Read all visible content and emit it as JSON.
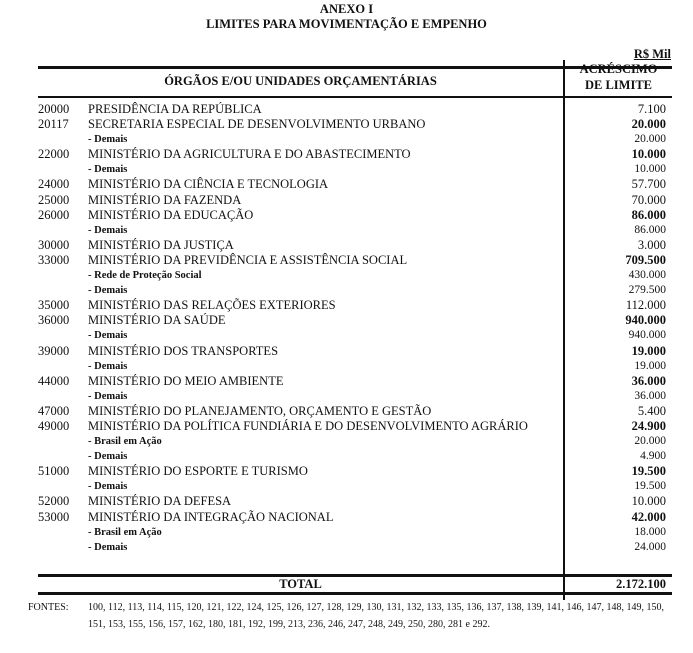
{
  "header": {
    "title": "ANEXO I",
    "subtitle": "LIMITES PARA MOVIMENTAÇÃO E EMPENHO",
    "unit": "R$ Mil"
  },
  "table": {
    "col_org": "ÓRGÃOS E/OU UNIDADES ORÇAMENTÁRIAS",
    "col_value_line1": "ACRÉSCIMO",
    "col_value_line2": "DE LIMITE",
    "rows": [
      {
        "code": "20000",
        "name": "PRESIDÊNCIA DA REPÚBLICA",
        "value": "7.100",
        "type": "plain"
      },
      {
        "code": "20117",
        "name": "SECRETARIA ESPECIAL DE DESENVOLVIMENTO URBANO",
        "value": "20.000",
        "type": "bold"
      },
      {
        "code": "",
        "name": "- Demais",
        "value": "20.000",
        "type": "sub"
      },
      {
        "code": "22000",
        "name": "MINISTÉRIO DA AGRICULTURA E DO ABASTECIMENTO",
        "value": "10.000",
        "type": "bold"
      },
      {
        "code": "",
        "name": "- Demais",
        "value": "10.000",
        "type": "sub"
      },
      {
        "code": "24000",
        "name": "MINISTÉRIO DA CIÊNCIA E  TECNOLOGIA",
        "value": "57.700",
        "type": "plain"
      },
      {
        "code": "25000",
        "name": "MINISTÉRIO DA FAZENDA",
        "value": "70.000",
        "type": "plain"
      },
      {
        "code": "26000",
        "name": "MINISTÉRIO DA EDUCAÇÃO",
        "value": "86.000",
        "type": "bold"
      },
      {
        "code": "",
        "name": "- Demais",
        "value": "86.000",
        "type": "sub"
      },
      {
        "code": "30000",
        "name": "MINISTÉRIO DA JUSTIÇA",
        "value": "3.000",
        "type": "plain"
      },
      {
        "code": "33000",
        "name": "MINISTÉRIO DA PREVIDÊNCIA E ASSISTÊNCIA SOCIAL",
        "value": "709.500",
        "type": "bold"
      },
      {
        "code": "",
        "name": "- Rede de Proteção Social",
        "value": "430.000",
        "type": "sub"
      },
      {
        "code": "",
        "name": "- Demais",
        "value": "279.500",
        "type": "sub"
      },
      {
        "code": "35000",
        "name": "MINISTÉRIO DAS RELAÇÕES EXTERIORES",
        "value": "112.000",
        "type": "plain"
      },
      {
        "code": "36000",
        "name": "MINISTÉRIO DA SAÚDE",
        "value": "940.000",
        "type": "bold"
      },
      {
        "code": "",
        "name": "- Demais",
        "value": "940.000",
        "type": "sub"
      },
      {
        "code": "39000",
        "name": "MINISTÉRIO DOS TRANSPORTES",
        "value": "19.000",
        "type": "bold"
      },
      {
        "code": "",
        "name": "- Demais",
        "value": "19.000",
        "type": "sub"
      },
      {
        "code": "44000",
        "name": "MINISTÉRIO DO MEIO AMBIENTE",
        "value": "36.000",
        "type": "bold"
      },
      {
        "code": "",
        "name": "- Demais",
        "value": "36.000",
        "type": "sub"
      },
      {
        "code": "47000",
        "name": "MINISTÉRIO DO PLANEJAMENTO, ORÇAMENTO E GESTÃO",
        "value": "5.400",
        "type": "plain"
      },
      {
        "code": "49000",
        "name": "MINISTÉRIO DA POLÍTICA FUNDIÁRIA E DO DESENVOLVIMENTO AGRÁRIO",
        "value": "24.900",
        "type": "bold"
      },
      {
        "code": "",
        "name": "- Brasil em Ação",
        "value": "20.000",
        "type": "sub"
      },
      {
        "code": "",
        "name": "- Demais",
        "value": "4.900",
        "type": "sub"
      },
      {
        "code": "51000",
        "name": "MINISTÉRIO DO ESPORTE E TURISMO",
        "value": "19.500",
        "type": "bold"
      },
      {
        "code": "",
        "name": "- Demais",
        "value": "19.500",
        "type": "sub"
      },
      {
        "code": "52000",
        "name": "MINISTÉRIO DA DEFESA",
        "value": "10.000",
        "type": "plain"
      },
      {
        "code": "53000",
        "name": "MINISTÉRIO DA INTEGRAÇÃO NACIONAL",
        "value": "42.000",
        "type": "bold"
      },
      {
        "code": "",
        "name": "- Brasil em Ação",
        "value": "18.000",
        "type": "sub"
      },
      {
        "code": "",
        "name": "- Demais",
        "value": "24.000",
        "type": "sub"
      }
    ],
    "total_label": "TOTAL",
    "total_value": "2.172.100"
  },
  "footer": {
    "fontes_label": "FONTES:",
    "fontes_line1": "100, 112, 113, 114, 115, 120, 121, 122, 124, 125, 126, 127, 128, 129, 130, 131, 132, 133, 135, 136, 137, 138, 139, 141, 146, 147, 148, 149, 150,",
    "fontes_line2": "151, 153, 155, 156, 157, 162, 180, 181, 192, 199, 213, 236, 246, 247, 248, 249, 250, 280, 281 e 292."
  }
}
